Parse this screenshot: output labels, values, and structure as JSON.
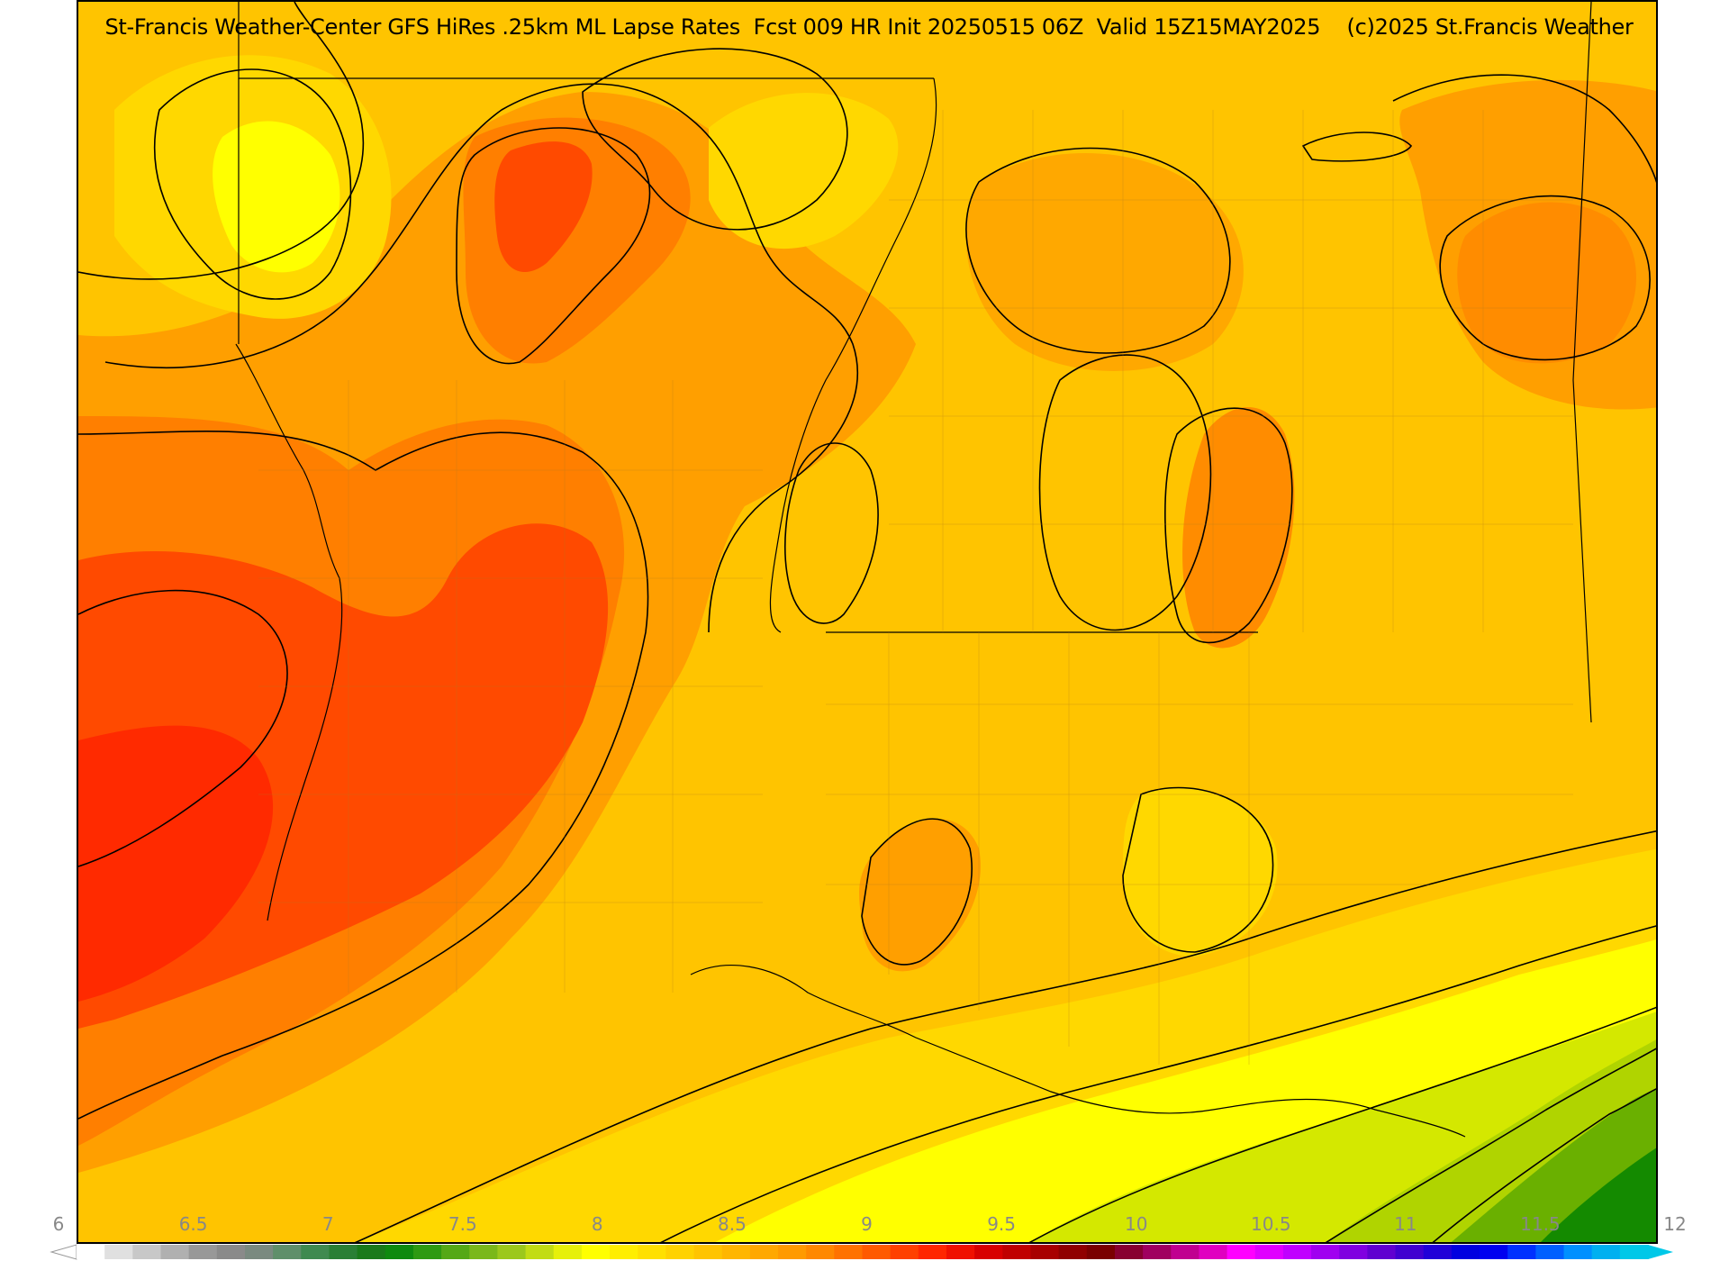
{
  "title": "St-Francis Weather-Center GFS HiRes .25km ML Lapse Rates  Fcst 009 HR Init 20250515 06Z  Valid 15Z15MAY2025    (c)2025 St.Francis Weather",
  "colorbar": {
    "ticks": [
      "6",
      "6.5",
      "7",
      "7.5",
      "8",
      "8.5",
      "9",
      "9.5",
      "10",
      "10.5",
      "11",
      "11.5",
      "12"
    ],
    "swatches": [
      "#ffffff",
      "#e0e0e0",
      "#c8c8c8",
      "#b0b0b0",
      "#989898",
      "#8a8a8a",
      "#7a8a80",
      "#5f8f6a",
      "#3f8a50",
      "#2a7f35",
      "#1a7a1a",
      "#0f8a0f",
      "#2e9a12",
      "#55a816",
      "#7ab81a",
      "#9cc81c",
      "#c2dc14",
      "#e6f00a",
      "#ffff00",
      "#ffee00",
      "#ffe000",
      "#ffd200",
      "#ffc400",
      "#ffb600",
      "#ffa800",
      "#ff9a00",
      "#ff8800",
      "#ff7200",
      "#ff5a00",
      "#ff4000",
      "#ff2600",
      "#f01000",
      "#d80000",
      "#c00000",
      "#a80000",
      "#900000",
      "#7a0000",
      "#880030",
      "#a00060",
      "#c00090",
      "#e000c0",
      "#ff00ff",
      "#e000ff",
      "#c000ff",
      "#a000f0",
      "#8000e0",
      "#6000d0",
      "#4000d0",
      "#2000d8",
      "#0000e0",
      "#0000f0",
      "#0030ff",
      "#0060ff",
      "#0090ff",
      "#00b0f0",
      "#00c8e8"
    ]
  },
  "palette": {
    "yellow": "#ffff00",
    "gold": "#ffd800",
    "amber": "#ffc400",
    "orange": "#ff9f00",
    "dark_orange": "#ff7f00",
    "red_orange": "#ff4a00",
    "red": "#ff2a00",
    "lime": "#d4e800",
    "yellow_green": "#b0d400",
    "green": "#6ab000",
    "dark_green": "#148a00"
  }
}
